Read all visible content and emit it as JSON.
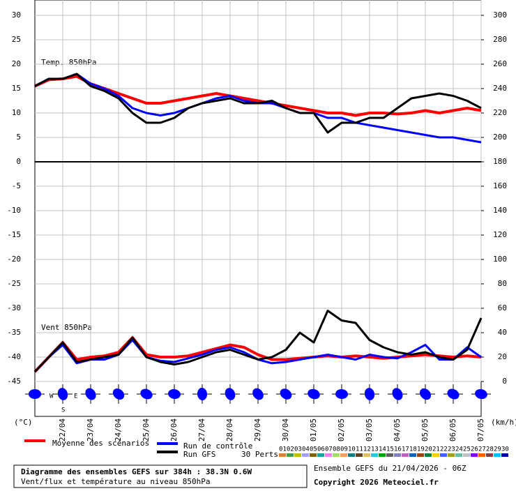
{
  "chart_data": {
    "type": "line",
    "temp_label": "Temp. 850hPa",
    "wind_label": "Vent 850hPa",
    "left_unit": "(°C)",
    "right_unit": "(km/h)",
    "wind_rose_labels": [
      "W",
      "E",
      "S"
    ],
    "categories": [
      null,
      null,
      "22/04",
      null,
      "23/04",
      null,
      "24/04",
      null,
      "25/04",
      null,
      "26/04",
      null,
      "27/04",
      null,
      "28/04",
      null,
      "29/04",
      null,
      "30/04",
      null,
      "01/05",
      null,
      "02/05",
      null,
      "03/05",
      null,
      "04/05",
      null,
      "05/05",
      null,
      "06/05",
      null,
      "07/05"
    ],
    "ylim": [
      -45,
      30
    ],
    "yticks": [
      -45,
      -40,
      -35,
      -30,
      -25,
      -20,
      -15,
      -10,
      -5,
      0,
      5,
      10,
      15,
      20,
      25,
      30
    ],
    "y2lim": [
      0,
      300
    ],
    "y2ticks": [
      0,
      20,
      40,
      60,
      80,
      100,
      120,
      140,
      160,
      180,
      200,
      220,
      240,
      260,
      280,
      300
    ],
    "grid": true,
    "series": [
      {
        "name": "Moyenne des scénarios",
        "color": "#ff0000",
        "axis": "y",
        "width": 4,
        "values": [
          15.5,
          16.8,
          17,
          17.5,
          16,
          15,
          14,
          13,
          12,
          12,
          12.5,
          13,
          13.5,
          14,
          13.5,
          13,
          12.5,
          12,
          11.5,
          11,
          10.5,
          10,
          10,
          9.5,
          10,
          10,
          9.8,
          10,
          10.5,
          10,
          10.5,
          11,
          10.5
        ]
      },
      {
        "name": "Run de contrôle",
        "color": "#0000ff",
        "axis": "y",
        "width": 3,
        "values": [
          15.5,
          17,
          17,
          18,
          16,
          15,
          13.5,
          11,
          10,
          9.5,
          10,
          11,
          12,
          13,
          13.5,
          12.5,
          12,
          12,
          11,
          10,
          10,
          9,
          9,
          8,
          7.5,
          7,
          6.5,
          6,
          5.5,
          5,
          5,
          4.5,
          4
        ]
      },
      {
        "name": "Run GFS",
        "color": "#000000",
        "axis": "y",
        "width": 3,
        "values": [
          15.5,
          17,
          17,
          18,
          15.5,
          14.5,
          13,
          10,
          8,
          8,
          9,
          11,
          12,
          12.5,
          13,
          12,
          12,
          12.5,
          11,
          10,
          10,
          6,
          8,
          8,
          9,
          9,
          11,
          13,
          13.5,
          14,
          13.5,
          12.5,
          11
        ]
      },
      {
        "color": "#ff0000",
        "axis": "y2",
        "width": 4,
        "values": [
          8,
          20,
          32,
          18,
          20,
          21,
          24,
          36,
          22,
          20,
          20,
          21,
          24,
          27,
          30,
          28,
          22,
          18,
          18,
          19,
          20,
          21,
          20,
          21,
          20,
          19,
          20,
          21,
          22,
          21,
          20,
          21,
          20
        ]
      },
      {
        "color": "#0000ff",
        "axis": "y2",
        "width": 3,
        "values": [
          8,
          20,
          30,
          15,
          18,
          18,
          22,
          34,
          20,
          17,
          16,
          19,
          22,
          26,
          28,
          24,
          18,
          15,
          16,
          18,
          20,
          22,
          20,
          18,
          22,
          20,
          19,
          24,
          30,
          18,
          18,
          28,
          20
        ]
      },
      {
        "color": "#000000",
        "axis": "y2",
        "width": 3,
        "values": [
          8,
          20,
          32,
          16,
          18,
          20,
          22,
          36,
          20,
          16,
          14,
          16,
          20,
          24,
          26,
          22,
          18,
          20,
          26,
          40,
          32,
          58,
          50,
          48,
          34,
          28,
          24,
          22,
          24,
          20,
          18,
          26,
          52
        ]
      }
    ]
  },
  "perturbations": {
    "title": "30 Perts.",
    "items": [
      {
        "name": "01",
        "color": "#e08030"
      },
      {
        "name": "02",
        "color": "#40a040"
      },
      {
        "name": "03",
        "color": "#c0c000"
      },
      {
        "name": "04",
        "color": "#a0a0ff"
      },
      {
        "name": "05",
        "color": "#806000"
      },
      {
        "name": "06",
        "color": "#20a0a0"
      },
      {
        "name": "07",
        "color": "#ff80ff"
      },
      {
        "name": "08",
        "color": "#a0e060"
      },
      {
        "name": "09",
        "color": "#ffa060"
      },
      {
        "name": "10",
        "color": "#008080"
      },
      {
        "name": "11",
        "color": "#604020"
      },
      {
        "name": "12",
        "color": "#e0c060"
      },
      {
        "name": "13",
        "color": "#30c0e0"
      },
      {
        "name": "14",
        "color": "#00a000"
      },
      {
        "name": "15",
        "color": "#606060"
      },
      {
        "name": "16",
        "color": "#8080c0"
      },
      {
        "name": "17",
        "color": "#c060c0"
      },
      {
        "name": "18",
        "color": "#0060c0"
      },
      {
        "name": "19",
        "color": "#a04000"
      },
      {
        "name": "20",
        "color": "#008040"
      },
      {
        "name": "21",
        "color": "#ffd000"
      },
      {
        "name": "22",
        "color": "#4060ff"
      },
      {
        "name": "23",
        "color": "#a0a000"
      },
      {
        "name": "24",
        "color": "#60c0a0"
      },
      {
        "name": "25",
        "color": "#c0c0c0"
      },
      {
        "name": "26",
        "color": "#8000ff"
      },
      {
        "name": "27",
        "color": "#ff6000"
      },
      {
        "name": "28",
        "color": "#804040"
      },
      {
        "name": "29",
        "color": "#00c0ff"
      },
      {
        "name": "30",
        "color": "#0000a0"
      }
    ]
  },
  "footer": {
    "title": "Diagramme des ensembles GEFS sur 384h : 38.3N 0.6W",
    "subtitle": "Vent/flux et température au niveau 850hPa",
    "run": "Ensemble GEFS du 21/04/2026 - 06Z",
    "copyright": "Copyright 2026 Meteociel.fr"
  }
}
